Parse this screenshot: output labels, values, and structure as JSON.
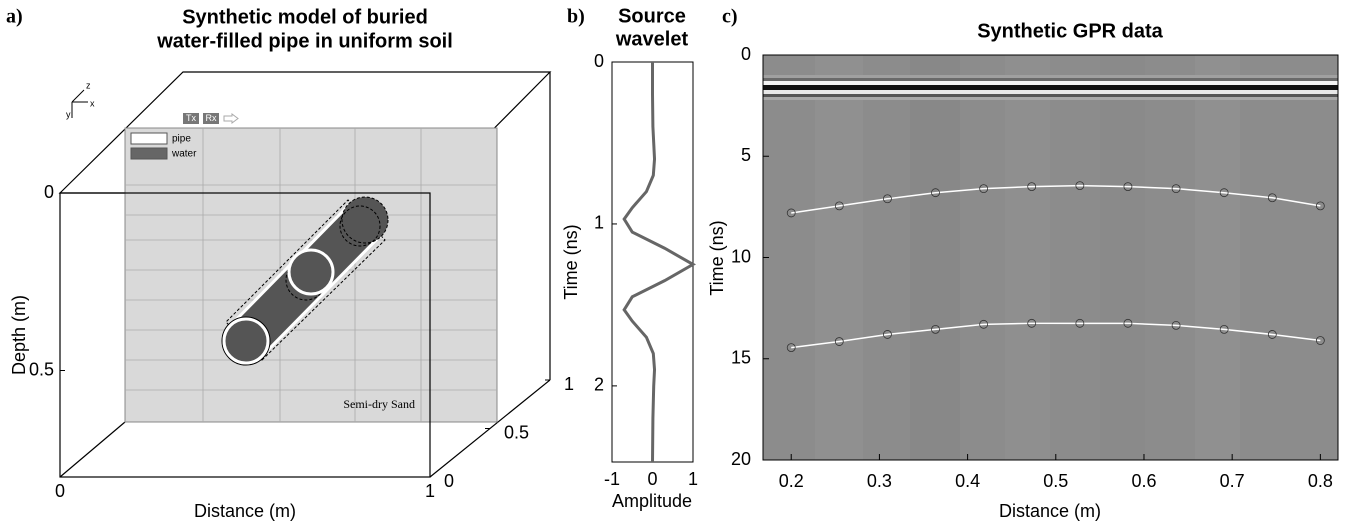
{
  "chart_data": [
    {
      "type": "scene",
      "label": "a)",
      "title": [
        "Synthetic model of buried",
        "water-filled pipe in uniform soil"
      ],
      "xlabel": "Distance (m)",
      "ylabel": "Depth (m)",
      "xlim": [
        0,
        1
      ],
      "xticks": [
        0,
        1
      ],
      "ylim": [
        0,
        0.8
      ],
      "yticks": [
        0,
        0.5
      ],
      "yinvert": true,
      "zlim": [
        0,
        1
      ],
      "zticks": [
        0,
        0.5,
        1
      ],
      "legend": [
        {
          "name": "pipe",
          "color": "#ffffff"
        },
        {
          "name": "water",
          "color": "#666666"
        }
      ],
      "annotations": {
        "material": "Semi-dry Sand",
        "tx": "Tx",
        "rx": "Rx"
      },
      "axis_glyphs": [
        "z",
        "x",
        "y"
      ]
    },
    {
      "type": "line",
      "label": "b)",
      "title": [
        "Source",
        "wavelet"
      ],
      "xlabel": "Amplitude",
      "ylabel": "Time (ns)",
      "orientation": "vertical",
      "color": "#666666",
      "x": [
        0,
        0.2,
        0.4,
        0.5,
        0.6,
        0.7,
        0.8,
        0.9,
        0.97,
        1.05,
        1.15,
        1.25,
        1.35,
        1.45,
        1.53,
        1.6,
        1.7,
        1.8,
        1.9,
        2.0,
        2.2,
        2.47
      ],
      "values": [
        0,
        0,
        0.01,
        0.03,
        0.05,
        0.02,
        -0.15,
        -0.5,
        -0.7,
        -0.5,
        0.3,
        1,
        0.3,
        -0.5,
        -0.7,
        -0.5,
        -0.15,
        0.02,
        0.05,
        0.03,
        0.01,
        0
      ],
      "ylim": [
        -1,
        1
      ],
      "yticks": [
        -1,
        0,
        1
      ],
      "xlim": [
        0,
        2.47
      ],
      "xticks": [
        0,
        1,
        2
      ],
      "xinvert": true
    },
    {
      "type": "scatter",
      "label": "c)",
      "title": "Synthetic GPR data",
      "xlabel": "Distance (m)",
      "ylabel": "Time (ns)",
      "x": [
        0.2,
        0.2545,
        0.3091,
        0.3636,
        0.4182,
        0.4727,
        0.5273,
        0.5818,
        0.6364,
        0.6909,
        0.7455,
        0.8
      ],
      "series": [
        {
          "color": "#ffffff",
          "marker_color": "#333333",
          "values": [
            7.8,
            7.45,
            7.1,
            6.8,
            6.6,
            6.5,
            6.45,
            6.5,
            6.6,
            6.8,
            7.05,
            7.45
          ]
        },
        {
          "color": "#ffffff",
          "marker_color": "#333333",
          "values": [
            14.45,
            14.15,
            13.8,
            13.55,
            13.3,
            13.25,
            13.25,
            13.25,
            13.35,
            13.55,
            13.8,
            14.1
          ]
        }
      ],
      "xlim": [
        0.168,
        0.82
      ],
      "xticks": [
        0.2,
        0.3,
        0.4,
        0.5,
        0.6,
        0.7,
        0.8
      ],
      "ylim": [
        0,
        20
      ],
      "yticks": [
        0,
        5,
        10,
        15,
        20
      ],
      "yinvert": true
    }
  ]
}
